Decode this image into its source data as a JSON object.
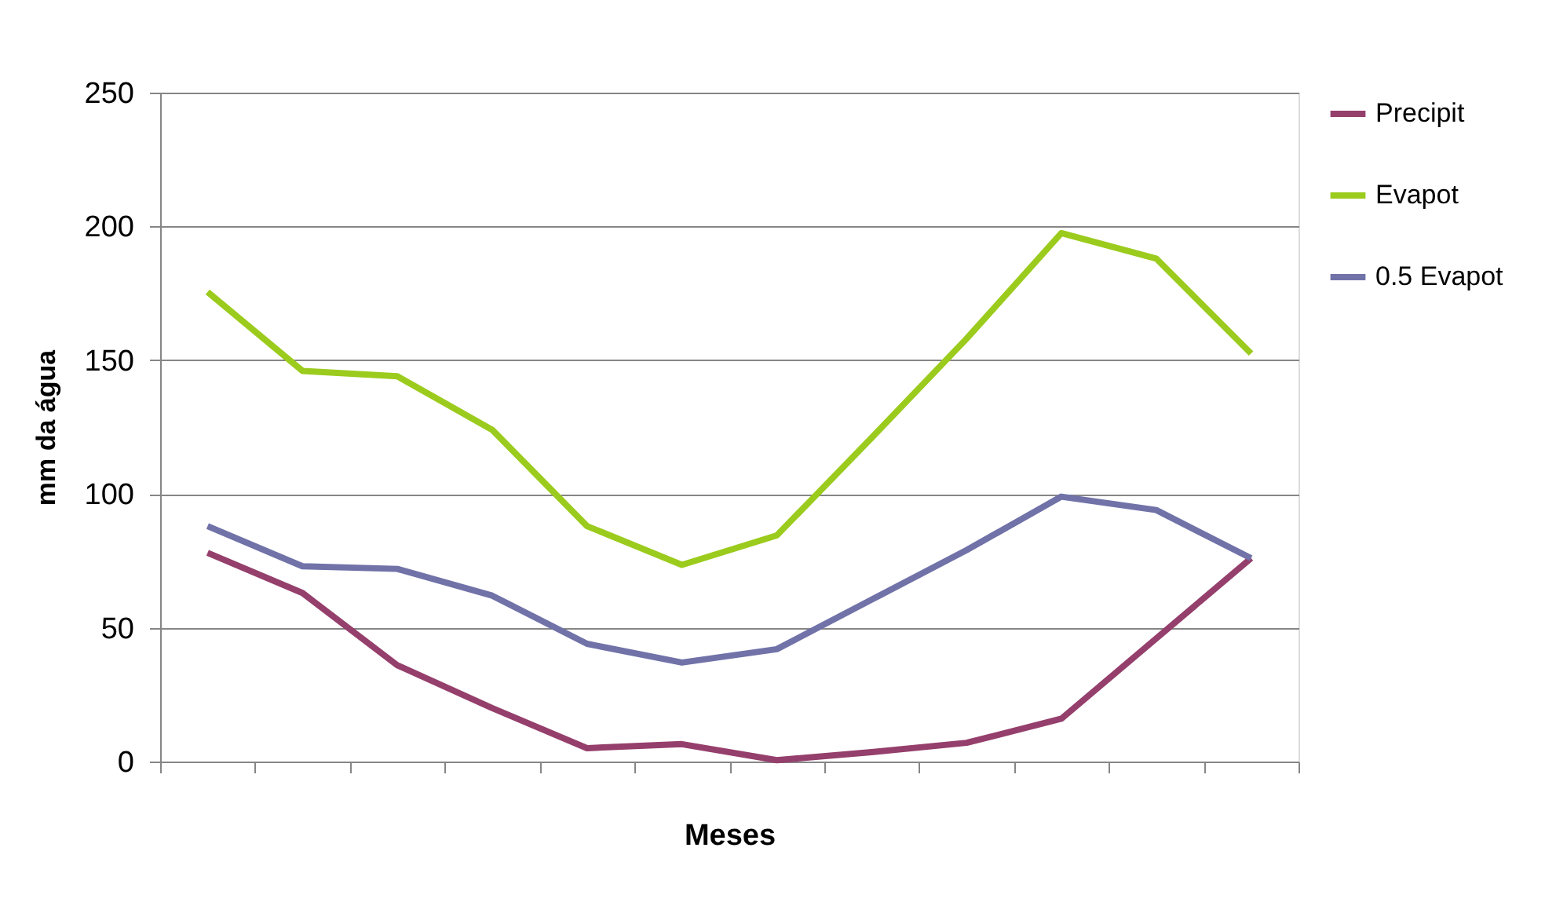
{
  "chart_data": {
    "type": "line",
    "xlabel": "Meses",
    "ylabel": "mm da água",
    "categories": [
      null,
      null,
      null,
      null,
      null,
      null,
      null,
      null,
      null,
      null,
      null,
      null
    ],
    "series": [
      {
        "name": "Precipit",
        "color": "#953f6c",
        "values": [
          78,
          63,
          36,
          20,
          5,
          6.5,
          0.5,
          3.5,
          7,
          16,
          46,
          76
        ]
      },
      {
        "name": "Evapot",
        "color": "#9bcb1d",
        "values": [
          175.5,
          146,
          144,
          124,
          88,
          73.5,
          84.5,
          121,
          158,
          197.5,
          188,
          152.5
        ]
      },
      {
        "name": "0.5 Evapot",
        "color": "#7072a8",
        "values": [
          88,
          73,
          72,
          62,
          44,
          37,
          42,
          60.5,
          79,
          99,
          94,
          76
        ]
      }
    ],
    "ylim": [
      0,
      250
    ],
    "yticks": [
      0,
      50,
      100,
      150,
      200,
      250
    ],
    "grid": "y",
    "legend": "right",
    "tick_labels": "y",
    "marker": "none",
    "line_style": "solid"
  }
}
